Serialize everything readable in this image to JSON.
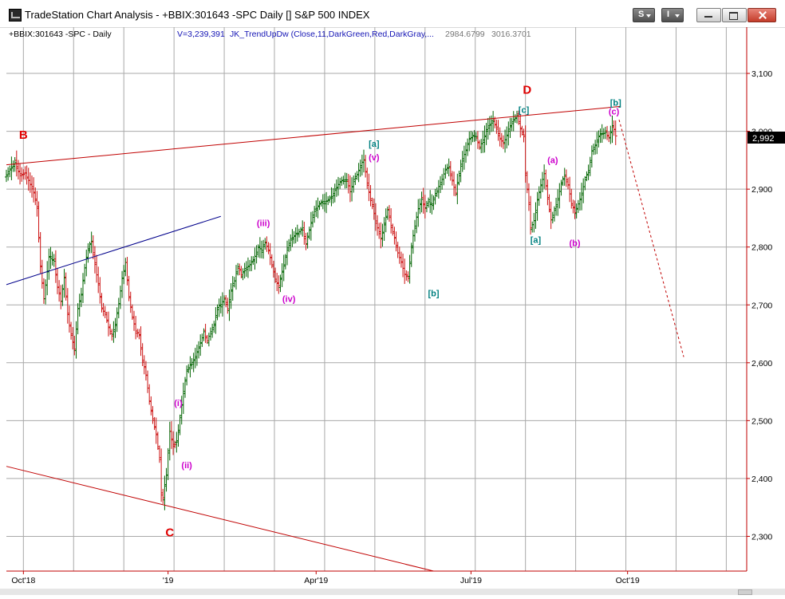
{
  "window": {
    "title": "TradeStation Chart Analysis - +BBIX:301643 -SPC Daily [] S&P 500 INDEX",
    "buttons": {
      "s_label": "S",
      "i_label": "I"
    }
  },
  "header": {
    "symbol_label": "+BBIX:301643 -SPC - Daily",
    "volume_label": "V=3,239,391",
    "indicator_label": "JK_TrendUpDw (Close,11,DarkGreen,Red,DarkGray,...",
    "value_1": "2984.6799",
    "value_2": "3016.3701"
  },
  "chart_data": {
    "type": "ohlc-bar",
    "title": "",
    "xlabel": "",
    "ylabel": "",
    "ylim": [
      2240,
      3180
    ],
    "y_ticks": [
      2300,
      2400,
      2500,
      2600,
      2700,
      2800,
      2900,
      3000,
      3100
    ],
    "y_tick_labels": [
      "2,300",
      "2,400",
      "2,500",
      "2,600",
      "2,700",
      "2,800",
      "2,900",
      "3,000",
      "3,100"
    ],
    "x_labels": [
      "Oct'18",
      "'19",
      "Apr'19",
      "Jul'19",
      "Oct'19"
    ],
    "x_label_days": [
      10,
      95,
      182,
      273,
      365
    ],
    "x_range_days": [
      0,
      435
    ],
    "gridlines": "on",
    "last_price": 2992,
    "last_price_label": "2,992",
    "series": {
      "key_closes": [
        [
          0,
          2925
        ],
        [
          3,
          2932
        ],
        [
          5,
          2940
        ],
        [
          8,
          2925
        ],
        [
          11,
          2935
        ],
        [
          13,
          2920
        ],
        [
          16,
          2890
        ],
        [
          18,
          2860
        ],
        [
          20,
          2760
        ],
        [
          22,
          2710
        ],
        [
          25,
          2790
        ],
        [
          28,
          2780
        ],
        [
          30,
          2730
        ],
        [
          32,
          2700
        ],
        [
          34,
          2740
        ],
        [
          36,
          2680
        ],
        [
          38,
          2650
        ],
        [
          40,
          2630
        ],
        [
          42,
          2700
        ],
        [
          44,
          2720
        ],
        [
          46,
          2760
        ],
        [
          48,
          2790
        ],
        [
          50,
          2805
        ],
        [
          52,
          2770
        ],
        [
          54,
          2740
        ],
        [
          56,
          2700
        ],
        [
          58,
          2690
        ],
        [
          60,
          2660
        ],
        [
          62,
          2640
        ],
        [
          64,
          2660
        ],
        [
          66,
          2700
        ],
        [
          68,
          2750
        ],
        [
          70,
          2780
        ],
        [
          72,
          2720
        ],
        [
          74,
          2680
        ],
        [
          76,
          2650
        ],
        [
          78,
          2640
        ],
        [
          80,
          2600
        ],
        [
          82,
          2580
        ],
        [
          84,
          2540
        ],
        [
          86,
          2510
        ],
        [
          88,
          2480
        ],
        [
          90,
          2430
        ],
        [
          91,
          2370
        ],
        [
          92,
          2360
        ],
        [
          94,
          2400
        ],
        [
          96,
          2480
        ],
        [
          98,
          2460
        ],
        [
          100,
          2470
        ],
        [
          102,
          2510
        ],
        [
          104,
          2550
        ],
        [
          106,
          2580
        ],
        [
          108,
          2590
        ],
        [
          110,
          2600
        ],
        [
          112,
          2620
        ],
        [
          114,
          2640
        ],
        [
          116,
          2660
        ],
        [
          118,
          2640
        ],
        [
          120,
          2650
        ],
        [
          122,
          2660
        ],
        [
          124,
          2690
        ],
        [
          126,
          2700
        ],
        [
          128,
          2715
        ],
        [
          130,
          2700
        ],
        [
          132,
          2730
        ],
        [
          134,
          2740
        ],
        [
          136,
          2760
        ],
        [
          138,
          2745
        ],
        [
          140,
          2760
        ],
        [
          142,
          2770
        ],
        [
          144,
          2780
        ],
        [
          146,
          2790
        ],
        [
          148,
          2800
        ],
        [
          150,
          2790
        ],
        [
          152,
          2800
        ],
        [
          154,
          2790
        ],
        [
          156,
          2770
        ],
        [
          158,
          2750
        ],
        [
          160,
          2740
        ],
        [
          162,
          2760
        ],
        [
          164,
          2780
        ],
        [
          166,
          2800
        ],
        [
          168,
          2810
        ],
        [
          170,
          2820
        ],
        [
          172,
          2830
        ],
        [
          174,
          2840
        ],
        [
          176,
          2810
        ],
        [
          178,
          2830
        ],
        [
          180,
          2850
        ],
        [
          182,
          2860
        ],
        [
          184,
          2870
        ],
        [
          186,
          2880
        ],
        [
          188,
          2885
        ],
        [
          190,
          2890
        ],
        [
          192,
          2895
        ],
        [
          194,
          2900
        ],
        [
          196,
          2905
        ],
        [
          198,
          2910
        ],
        [
          200,
          2915
        ],
        [
          202,
          2900
        ],
        [
          204,
          2920
        ],
        [
          206,
          2930
        ],
        [
          208,
          2940
        ],
        [
          210,
          2945
        ],
        [
          212,
          2900
        ],
        [
          214,
          2880
        ],
        [
          216,
          2860
        ],
        [
          218,
          2840
        ],
        [
          220,
          2820
        ],
        [
          222,
          2840
        ],
        [
          224,
          2860
        ],
        [
          226,
          2830
        ],
        [
          228,
          2810
        ],
        [
          230,
          2790
        ],
        [
          232,
          2780
        ],
        [
          234,
          2760
        ],
        [
          236,
          2750
        ],
        [
          238,
          2800
        ],
        [
          240,
          2830
        ],
        [
          242,
          2860
        ],
        [
          244,
          2880
        ],
        [
          246,
          2870
        ],
        [
          248,
          2885
        ],
        [
          250,
          2880
        ],
        [
          252,
          2890
        ],
        [
          254,
          2900
        ],
        [
          256,
          2910
        ],
        [
          258,
          2930
        ],
        [
          260,
          2940
        ],
        [
          262,
          2920
        ],
        [
          264,
          2900
        ],
        [
          266,
          2930
        ],
        [
          268,
          2950
        ],
        [
          270,
          2960
        ],
        [
          272,
          2980
        ],
        [
          274,
          2990
        ],
        [
          276,
          2995
        ],
        [
          278,
          2980
        ],
        [
          280,
          2990
        ],
        [
          282,
          3000
        ],
        [
          284,
          3005
        ],
        [
          286,
          3010
        ],
        [
          288,
          3000
        ],
        [
          290,
          2990
        ],
        [
          292,
          2985
        ],
        [
          294,
          3000
        ],
        [
          296,
          3010
        ],
        [
          298,
          3015
        ],
        [
          300,
          3020
        ],
        [
          302,
          3000
        ],
        [
          304,
          2990
        ],
        [
          305,
          2930
        ],
        [
          307,
          2880
        ],
        [
          308,
          2840
        ],
        [
          310,
          2850
        ],
        [
          312,
          2880
        ],
        [
          314,
          2900
        ],
        [
          316,
          2920
        ],
        [
          318,
          2880
        ],
        [
          320,
          2850
        ],
        [
          322,
          2870
        ],
        [
          324,
          2890
        ],
        [
          326,
          2910
        ],
        [
          328,
          2920
        ],
        [
          330,
          2900
        ],
        [
          332,
          2870
        ],
        [
          334,
          2860
        ],
        [
          336,
          2880
        ],
        [
          338,
          2900
        ],
        [
          340,
          2920
        ],
        [
          342,
          2930
        ],
        [
          344,
          2960
        ],
        [
          346,
          2970
        ],
        [
          348,
          2990
        ],
        [
          350,
          3000
        ],
        [
          352,
          3005
        ],
        [
          354,
          2995
        ],
        [
          356,
          3010
        ],
        [
          358,
          2992
        ]
      ]
    },
    "trendlines": [
      {
        "color": "#c00000",
        "style": "solid",
        "points": [
          [
            0,
            2942
          ],
          [
            361,
            3043
          ]
        ]
      },
      {
        "color": "#c00000",
        "style": "solid",
        "points": [
          [
            0,
            2421
          ],
          [
            251,
            2240
          ]
        ]
      },
      {
        "color": "#00008b",
        "style": "solid",
        "points": [
          [
            0,
            2735
          ],
          [
            126,
            2853
          ]
        ]
      },
      {
        "color": "#c00000",
        "style": "dashed",
        "points": [
          [
            360,
            3020
          ],
          [
            398,
            2610
          ]
        ]
      }
    ],
    "annotations": [
      {
        "text": "B",
        "x": 10,
        "y": 2987,
        "color": "#e00000",
        "size": "large"
      },
      {
        "text": "C",
        "x": 96,
        "y": 2300,
        "color": "#e00000",
        "size": "large"
      },
      {
        "text": "D",
        "x": 306,
        "y": 3065,
        "color": "#e00000",
        "size": "large"
      },
      {
        "text": "(i)",
        "x": 101,
        "y": 2525,
        "color": "#cc00cc",
        "size": "small"
      },
      {
        "text": "(ii)",
        "x": 106,
        "y": 2418,
        "color": "#cc00cc",
        "size": "small"
      },
      {
        "text": "(iii)",
        "x": 151,
        "y": 2836,
        "color": "#cc00cc",
        "size": "small"
      },
      {
        "text": "(iv)",
        "x": 166,
        "y": 2705,
        "color": "#cc00cc",
        "size": "small"
      },
      {
        "text": "(v)",
        "x": 216,
        "y": 2950,
        "color": "#cc00cc",
        "size": "small"
      },
      {
        "text": "[a]",
        "x": 216,
        "y": 2973,
        "color": "#008080",
        "size": "small"
      },
      {
        "text": "[b]",
        "x": 251,
        "y": 2715,
        "color": "#008080",
        "size": "small"
      },
      {
        "text": "[c]",
        "x": 304,
        "y": 3032,
        "color": "#008080",
        "size": "small"
      },
      {
        "text": "(a)",
        "x": 321,
        "y": 2945,
        "color": "#cc00cc",
        "size": "small"
      },
      {
        "text": "[a]",
        "x": 311,
        "y": 2807,
        "color": "#008080",
        "size": "small"
      },
      {
        "text": "(b)",
        "x": 334,
        "y": 2802,
        "color": "#cc00cc",
        "size": "small"
      },
      {
        "text": "[b]",
        "x": 358,
        "y": 3044,
        "color": "#008080",
        "size": "small"
      },
      {
        "text": "(c)",
        "x": 357,
        "y": 3029,
        "color": "#cc00cc",
        "size": "small"
      }
    ]
  }
}
